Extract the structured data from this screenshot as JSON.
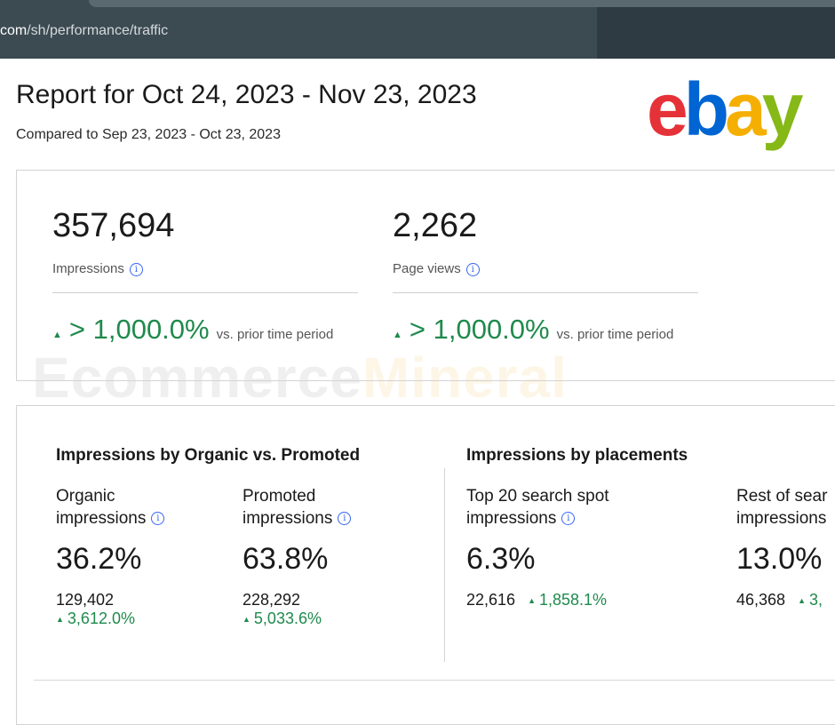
{
  "browser": {
    "url_host": "com",
    "url_path": "/sh/performance/traffic"
  },
  "report": {
    "title": "Report for Oct 24, 2023 - Nov 23, 2023",
    "compared": "Compared to Sep 23, 2023 - Oct 23, 2023"
  },
  "logo": {
    "letters": [
      "e",
      "b",
      "a",
      "y"
    ],
    "colors": [
      "#e53238",
      "#0064d2",
      "#f5af02",
      "#86b817"
    ]
  },
  "watermark": {
    "part1": "Ecommerce",
    "part2": "Mineral"
  },
  "summary": [
    {
      "value": "357,694",
      "label": "Impressions",
      "change": "> 1,000.0%",
      "vs": "vs. prior time period"
    },
    {
      "value": "2,262",
      "label": "Page views",
      "change": "> 1,000.0%",
      "vs": "vs. prior time period"
    }
  ],
  "organic_vs_promoted": {
    "heading": "Impressions by Organic vs. Promoted",
    "columns": [
      {
        "label_line1": "Organic",
        "label_line2": "impressions",
        "pct": "36.2%",
        "count": "129,402",
        "change": "3,612.0%"
      },
      {
        "label_line1": "Promoted",
        "label_line2": "impressions",
        "pct": "63.8%",
        "count": "228,292",
        "change": "5,033.6%"
      }
    ]
  },
  "placements": {
    "heading": "Impressions by placements",
    "columns": [
      {
        "label_line1": "Top 20 search spot",
        "label_line2": "impressions",
        "pct": "6.3%",
        "count": "22,616",
        "change": "1,858.1%"
      },
      {
        "label_line1": "Rest of sear",
        "label_line2": "impressions",
        "pct": "13.0%",
        "count": "46,368",
        "change": "3,"
      }
    ]
  },
  "icons": {
    "info": "i",
    "up": "▲"
  },
  "colors": {
    "positive": "#1f8a4c",
    "info_blue": "#3665f3"
  }
}
